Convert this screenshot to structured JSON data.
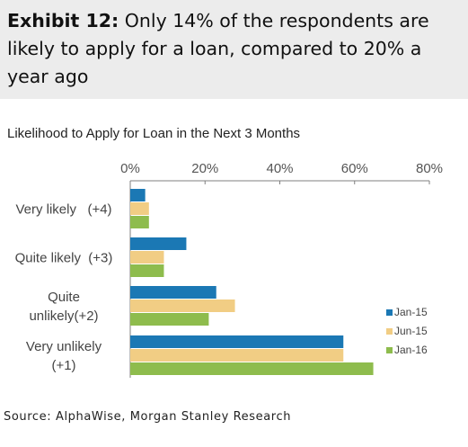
{
  "header": {
    "exhibit_label": "Exhibit 12:",
    "exhibit_text": "Only 14% of the respondents are likely to apply for a loan, compared to 20% a year ago"
  },
  "source": "Source: AlphaWise, Morgan Stanley Research",
  "chart_data": {
    "type": "bar",
    "orientation": "horizontal",
    "title": "Likelihood to Apply for  Loan in the Next 3 Months",
    "xlabel": "",
    "ylabel": "",
    "xlim": [
      0,
      80
    ],
    "x_ticks": [
      "0%",
      "20%",
      "40%",
      "60%",
      "80%"
    ],
    "x_tick_values": [
      0,
      20,
      40,
      60,
      80
    ],
    "grid": false,
    "legend_position": "right",
    "categories": [
      [
        "Very likely   (+4)"
      ],
      [
        "Quite likely  (+3)"
      ],
      [
        "Quite",
        "unlikely(+2)"
      ],
      [
        "Very unlikely",
        "(+1)"
      ]
    ],
    "series": [
      {
        "name": "Jan-15",
        "color": "#1b78b4",
        "values": [
          4,
          15,
          23,
          57
        ]
      },
      {
        "name": "Jun-15",
        "color": "#f1cd84",
        "values": [
          5,
          9,
          28,
          57
        ]
      },
      {
        "name": "Jan-16",
        "color": "#8ebc4d",
        "values": [
          5,
          9,
          21,
          65
        ]
      }
    ]
  }
}
